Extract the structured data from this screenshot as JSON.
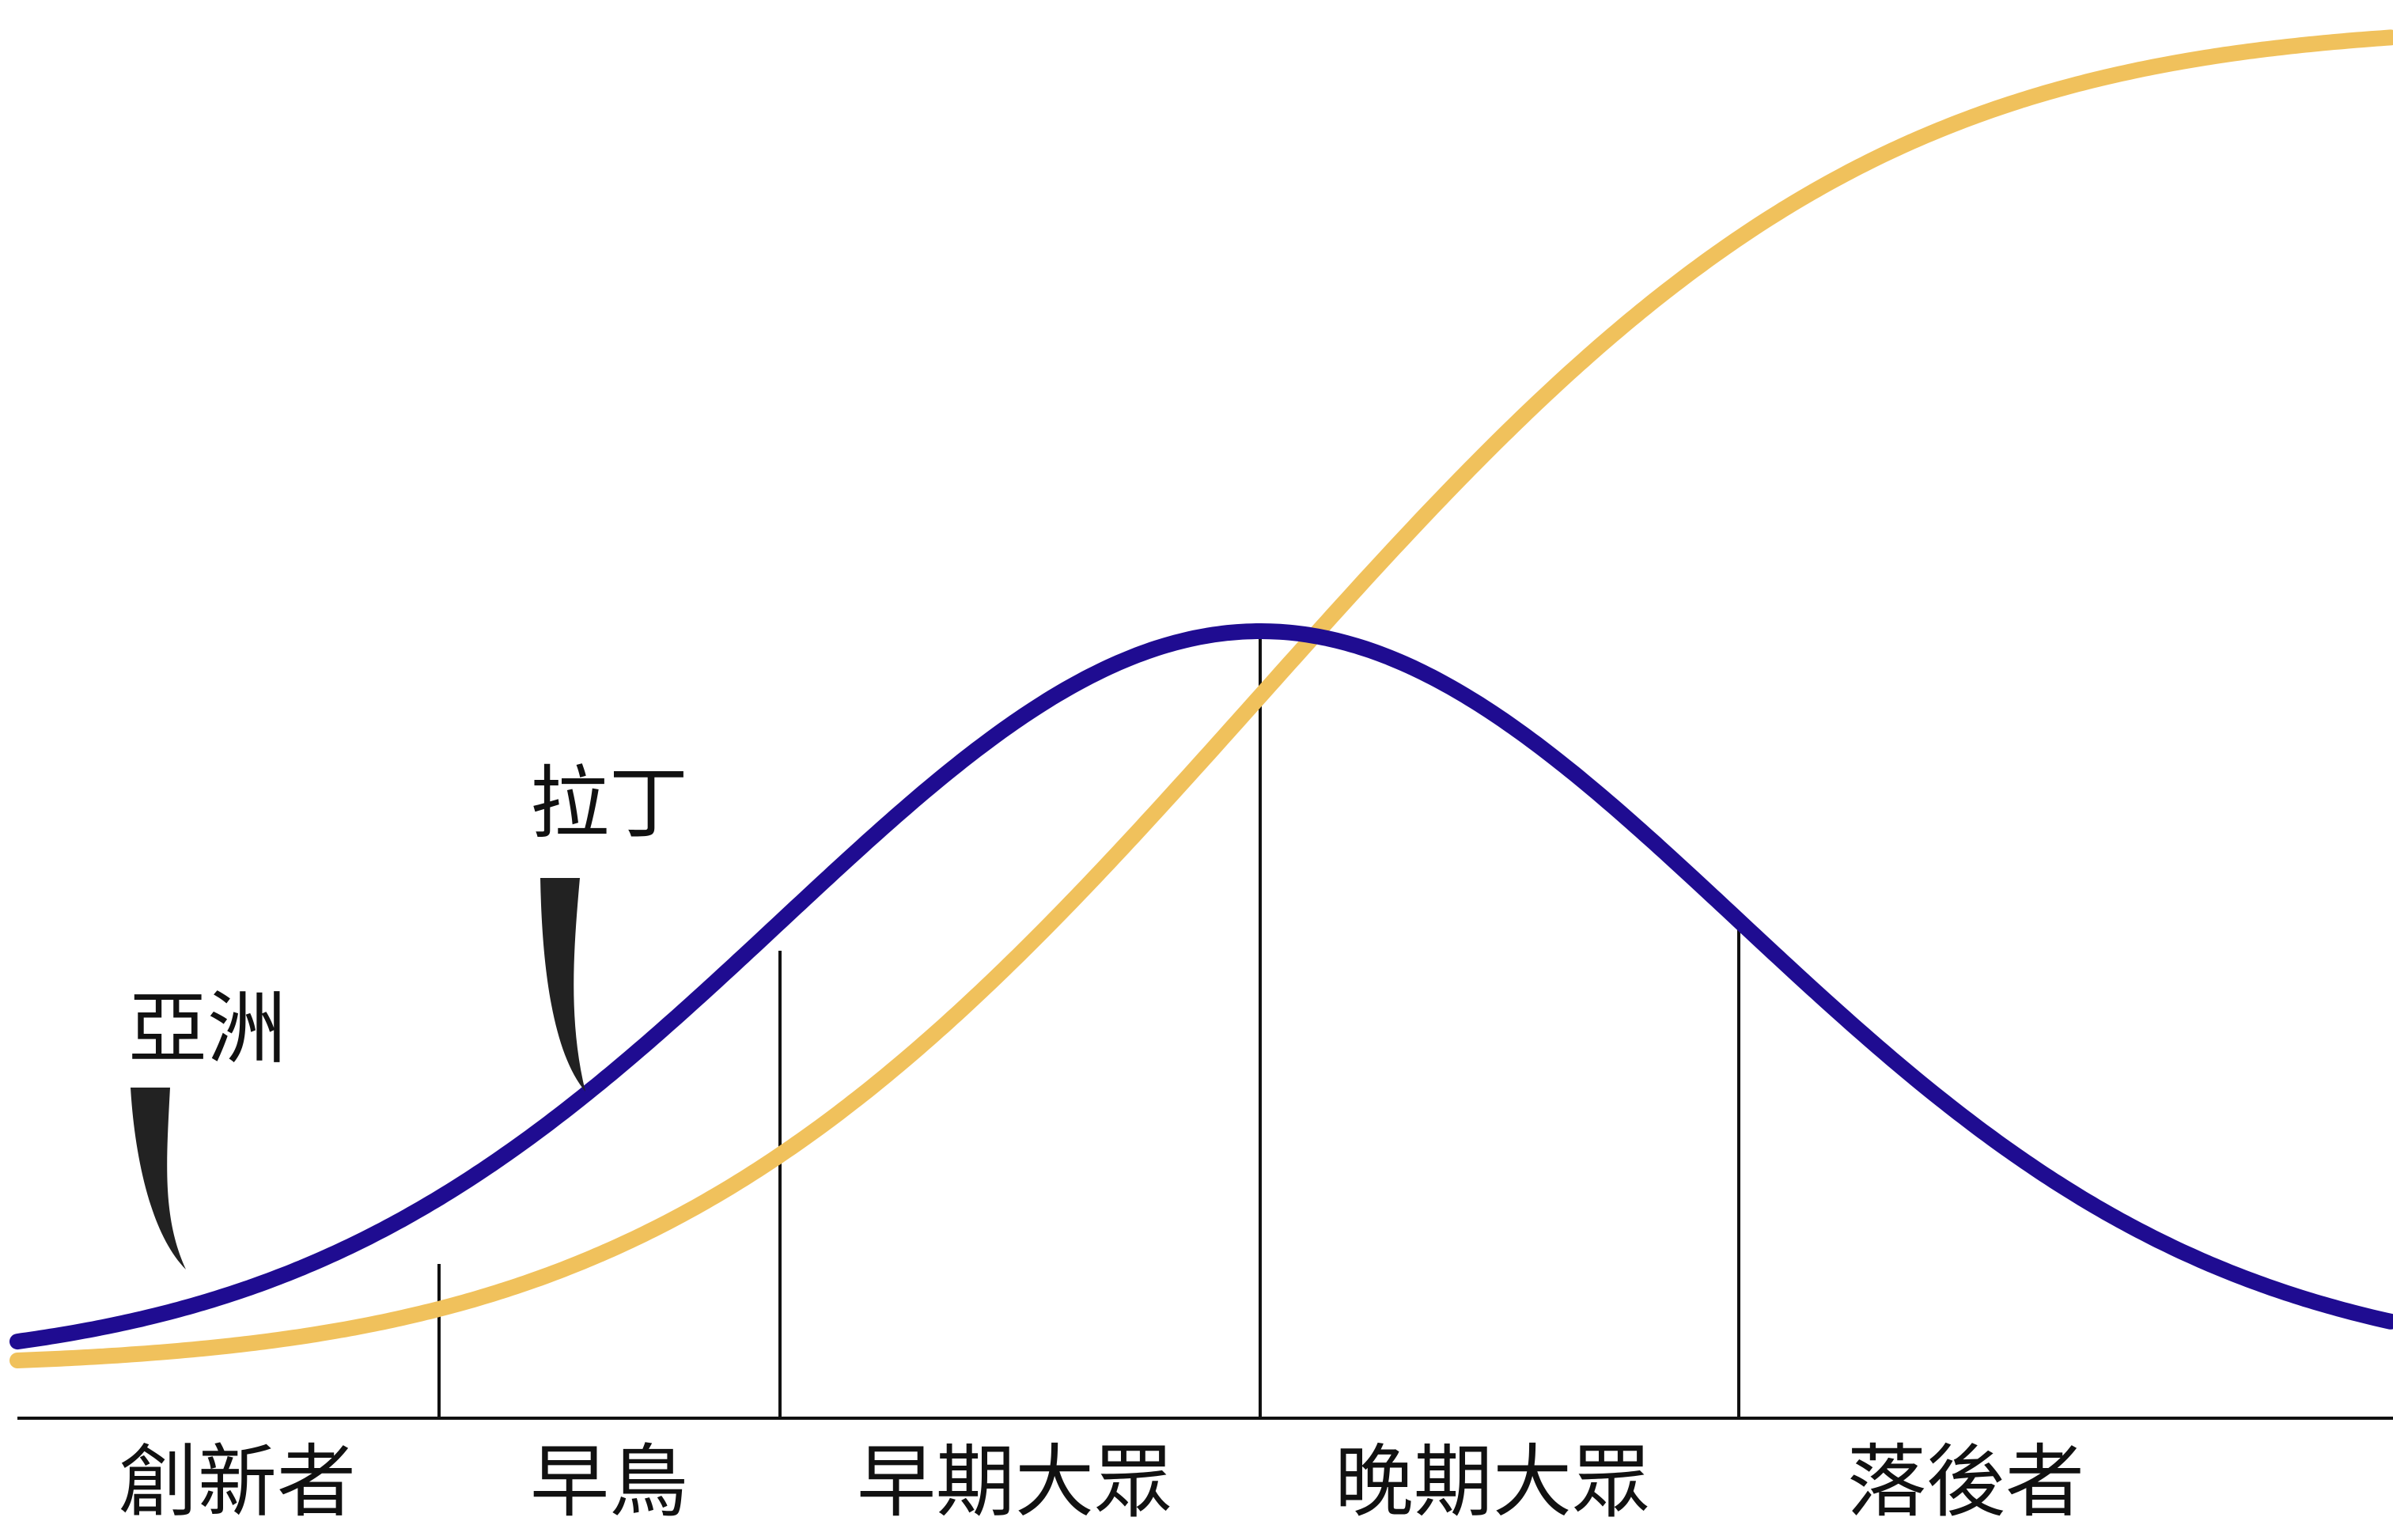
{
  "segments": [
    {
      "label": "創新者"
    },
    {
      "label": "早鳥"
    },
    {
      "label": "早期大眾"
    },
    {
      "label": "晚期大眾"
    },
    {
      "label": "落後者"
    }
  ],
  "markers": [
    {
      "label": "亞洲"
    },
    {
      "label": "拉丁"
    }
  ],
  "colors": {
    "bell_curve": "#1f0c91",
    "s_curve": "#f0c15c",
    "lines": "#111111",
    "marker_fill": "#222222"
  }
}
